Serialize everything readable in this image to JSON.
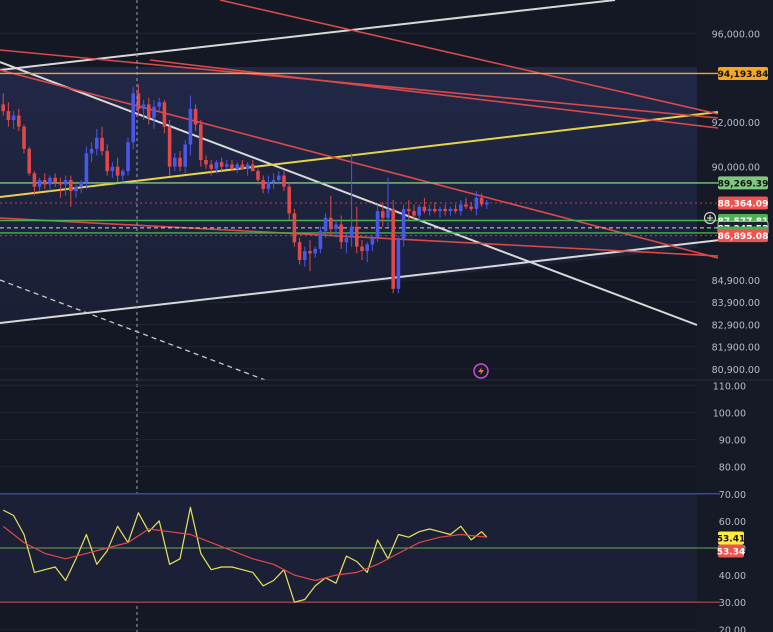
{
  "chart_data": [
    {
      "type": "candlestick",
      "name": "price-pane",
      "ylim": [
        80400,
        97500
      ],
      "y_ticks": [
        {
          "value": 96000,
          "label": "96,000.00"
        },
        {
          "value": 92000,
          "label": "92,000.00"
        },
        {
          "value": 90000,
          "label": "90,000.00"
        },
        {
          "value": 84900,
          "label": "84,900.00"
        },
        {
          "value": 83900,
          "label": "83,900.00"
        },
        {
          "value": 82900,
          "label": "82,900.00"
        },
        {
          "value": 81900,
          "label": "81,900.00"
        },
        {
          "value": 80900,
          "label": "80,900.00"
        }
      ],
      "candles": [
        [
          1,
          92800,
          93300,
          92300,
          92500
        ],
        [
          2,
          92500,
          92900,
          91800,
          92100
        ],
        [
          3,
          92100,
          92500,
          91700,
          92300
        ],
        [
          4,
          92300,
          92600,
          91600,
          91800
        ],
        [
          5,
          91800,
          91900,
          90600,
          90800
        ],
        [
          6,
          90800,
          90900,
          89600,
          89700
        ],
        [
          7,
          89700,
          89800,
          88700,
          89100
        ],
        [
          8,
          89100,
          89500,
          88900,
          89400
        ],
        [
          9,
          89400,
          89700,
          89000,
          89200
        ],
        [
          10,
          89200,
          89600,
          88900,
          89500
        ],
        [
          11,
          89500,
          89700,
          89100,
          89300
        ],
        [
          12,
          89300,
          89500,
          88600,
          89200
        ],
        [
          13,
          89200,
          89600,
          88700,
          89400
        ],
        [
          14,
          89400,
          89600,
          88200,
          88900
        ],
        [
          15,
          88900,
          89200,
          88600,
          89100
        ],
        [
          16,
          89100,
          89400,
          88800,
          89300
        ],
        [
          17,
          89300,
          90900,
          89000,
          90600
        ],
        [
          18,
          90600,
          91100,
          90200,
          90800
        ],
        [
          19,
          90800,
          91700,
          90500,
          91300
        ],
        [
          20,
          91300,
          91800,
          90500,
          90700
        ],
        [
          21,
          90700,
          91000,
          89600,
          89800
        ],
        [
          22,
          89800,
          90200,
          89500,
          90000
        ],
        [
          23,
          90000,
          90400,
          89300,
          89600
        ],
        [
          24,
          89600,
          89900,
          89400,
          89800
        ],
        [
          25,
          89800,
          91300,
          89600,
          91100
        ],
        [
          26,
          91100,
          93600,
          90800,
          93300
        ],
        [
          27,
          93300,
          93700,
          92300,
          92600
        ],
        [
          28,
          92600,
          93000,
          92100,
          92800
        ],
        [
          29,
          92800,
          93100,
          91900,
          92200
        ],
        [
          30,
          92200,
          93000,
          91700,
          92700
        ],
        [
          31,
          92700,
          93100,
          92500,
          92900
        ],
        [
          32,
          92900,
          93000,
          91500,
          91800
        ],
        [
          33,
          91800,
          92100,
          89600,
          90000
        ],
        [
          34,
          90000,
          90600,
          89800,
          90400
        ],
        [
          35,
          90400,
          90700,
          89800,
          90000
        ],
        [
          36,
          90000,
          91200,
          89700,
          91000
        ],
        [
          37,
          91000,
          93200,
          90500,
          92600
        ],
        [
          38,
          92600,
          92800,
          91600,
          91900
        ],
        [
          39,
          91900,
          92100,
          90000,
          90300
        ],
        [
          40,
          90300,
          90500,
          89900,
          90100
        ],
        [
          41,
          90100,
          90300,
          89600,
          89900
        ],
        [
          42,
          89900,
          90300,
          89700,
          90200
        ],
        [
          43,
          90200,
          90400,
          89800,
          90000
        ],
        [
          44,
          90000,
          90300,
          89900,
          90100
        ],
        [
          45,
          90100,
          90300,
          89800,
          89900
        ],
        [
          46,
          89900,
          90200,
          89700,
          90100
        ],
        [
          47,
          90100,
          90300,
          89900,
          89900
        ],
        [
          48,
          89900,
          90200,
          89600,
          90100
        ],
        [
          49,
          90100,
          90300,
          89800,
          89800
        ],
        [
          50,
          89800,
          89900,
          89200,
          89400
        ],
        [
          51,
          89400,
          89600,
          88800,
          89000
        ],
        [
          52,
          89000,
          89600,
          88800,
          89300
        ],
        [
          53,
          89300,
          89700,
          89000,
          89400
        ],
        [
          54,
          89400,
          89800,
          89200,
          89600
        ],
        [
          55,
          89600,
          89800,
          88900,
          89100
        ],
        [
          56,
          89100,
          89300,
          87600,
          87900
        ],
        [
          57,
          87900,
          88100,
          86400,
          86600
        ],
        [
          58,
          86600,
          86800,
          85600,
          85800
        ],
        [
          59,
          85800,
          86400,
          85500,
          86200
        ],
        [
          60,
          86200,
          86700,
          85300,
          86100
        ],
        [
          61,
          86100,
          86400,
          85900,
          86300
        ],
        [
          62,
          86300,
          87300,
          86100,
          87100
        ],
        [
          63,
          87100,
          87900,
          86800,
          87700
        ],
        [
          64,
          87700,
          88700,
          86900,
          87200
        ],
        [
          65,
          87200,
          87600,
          86800,
          87400
        ],
        [
          66,
          87400,
          87800,
          86300,
          86600
        ],
        [
          67,
          86600,
          87000,
          86100,
          86800
        ],
        [
          68,
          86800,
          90600,
          86400,
          87300
        ],
        [
          69,
          87300,
          88200,
          86100,
          86400
        ],
        [
          70,
          86400,
          86700,
          85800,
          86200
        ],
        [
          71,
          86200,
          86600,
          85700,
          86500
        ],
        [
          72,
          86500,
          86900,
          86200,
          86800
        ],
        [
          73,
          86800,
          88300,
          86600,
          88000
        ],
        [
          74,
          88000,
          88400,
          87300,
          87700
        ],
        [
          75,
          87700,
          89500,
          87300,
          88100
        ],
        [
          76,
          88100,
          88500,
          84300,
          84500
        ],
        [
          77,
          84500,
          86900,
          84300,
          86700
        ],
        [
          78,
          86700,
          88300,
          86400,
          88100
        ],
        [
          79,
          88100,
          88500,
          87600,
          88000
        ],
        [
          80,
          88000,
          88300,
          87600,
          87800
        ],
        [
          81,
          87800,
          88300,
          87500,
          88200
        ],
        [
          82,
          88200,
          88600,
          87900,
          88000
        ],
        [
          83,
          88000,
          88300,
          87800,
          88100
        ],
        [
          84,
          88100,
          88400,
          87900,
          88000
        ],
        [
          85,
          88000,
          88200,
          87700,
          88100
        ],
        [
          86,
          88100,
          88300,
          87800,
          88000
        ],
        [
          87,
          88000,
          88200,
          87800,
          88100
        ],
        [
          88,
          88100,
          88300,
          87900,
          88000
        ],
        [
          89,
          88000,
          88500,
          87800,
          88300
        ],
        [
          90,
          88300,
          88600,
          88100,
          88200
        ],
        [
          91,
          88200,
          88400,
          88000,
          88100
        ],
        [
          92,
          88100,
          88900,
          87800,
          88600
        ],
        [
          93,
          88600,
          88800,
          88200,
          88300
        ],
        [
          94,
          88300,
          88500,
          88100,
          88400
        ]
      ],
      "price_levels": [
        {
          "value": 94193.84,
          "label": "94,193.84",
          "color": "#f5a623"
        },
        {
          "value": 89269.39,
          "label": "89,269.39",
          "color": "#81c784"
        },
        {
          "value": 88364.09,
          "label": "88,364.09",
          "color": "#ef5350"
        },
        {
          "value": 87577.81,
          "label": "87,577.81",
          "color": "#4caf50"
        },
        {
          "value": 87247.53,
          "label": "87,247.53",
          "color": "#ffffff"
        },
        {
          "value": 87016.04,
          "label": "87,016.04",
          "color": "#4caf50"
        },
        {
          "value": 86895.08,
          "label": "86,895.08",
          "color": "#ef5350"
        }
      ]
    },
    {
      "type": "line",
      "name": "oscillator-pane",
      "ylim": [
        19,
        112
      ],
      "y_ticks": [
        {
          "value": 110,
          "label": "110.00"
        },
        {
          "value": 100,
          "label": "100.00"
        },
        {
          "value": 90,
          "label": "90.00"
        },
        {
          "value": 80,
          "label": "80.00"
        },
        {
          "value": 70,
          "label": "70.00"
        },
        {
          "value": 60,
          "label": "60.00"
        },
        {
          "value": 50,
          "label": "50.00"
        },
        {
          "value": 40,
          "label": "40.00"
        },
        {
          "value": 30,
          "label": "30.00"
        },
        {
          "value": 20,
          "label": "20.00"
        }
      ],
      "bands": [
        70,
        50,
        30
      ],
      "series": [
        {
          "color": "#e8e45a",
          "x": [
            1,
            3,
            5,
            7,
            9,
            11,
            13,
            15,
            17,
            19,
            21,
            23,
            25,
            27,
            29,
            31,
            33,
            35,
            37,
            39,
            41,
            43,
            45,
            47,
            49,
            51,
            53,
            55,
            57,
            59,
            61,
            63,
            65,
            67,
            69,
            71,
            73,
            75,
            77,
            79,
            81,
            83,
            85,
            87,
            89,
            91,
            93,
            94
          ],
          "values": [
            64,
            62,
            55,
            41,
            42,
            43,
            38,
            46,
            55,
            44,
            49,
            58,
            52,
            63,
            56,
            60,
            44,
            46,
            65,
            48,
            42,
            43,
            43,
            42,
            41,
            36,
            38,
            42,
            30,
            31,
            36,
            39,
            37,
            47,
            45,
            41,
            53,
            46,
            55,
            54,
            56,
            57,
            56,
            55,
            58,
            53,
            56,
            54
          ]
        },
        {
          "color": "#e0484a",
          "x": [
            1,
            5,
            9,
            13,
            17,
            21,
            25,
            29,
            33,
            37,
            41,
            45,
            49,
            53,
            57,
            61,
            65,
            69,
            73,
            77,
            81,
            85,
            89,
            94
          ],
          "values": [
            58,
            52,
            48,
            46,
            48,
            50,
            52,
            57,
            56,
            55,
            52,
            49,
            46,
            44,
            40,
            38,
            40,
            41,
            44,
            48,
            52,
            54,
            55,
            54
          ]
        }
      ],
      "value_labels": [
        {
          "value": 53.41,
          "label": "53.41",
          "color": "#ffeb3b"
        },
        {
          "value": 53.34,
          "label": "53.34",
          "color": "#ef5350"
        }
      ]
    }
  ],
  "colors": {
    "background": "#141824",
    "up_candle": "#4a57e8",
    "down_candle": "#e0484a",
    "grid": "#1f2535"
  }
}
